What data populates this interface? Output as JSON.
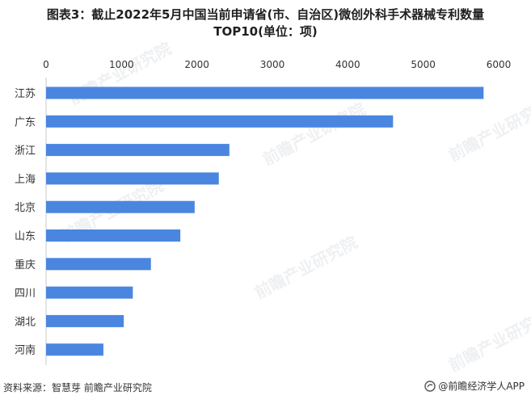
{
  "chart_data": {
    "type": "bar",
    "orientation": "horizontal",
    "title": "图表3：截止2022年5月中国当前申请省(市、自治区)微创外科手术器械专利数量TOP10(单位：项)",
    "title_line1": "图表3：截止2022年5月中国当前申请省(市、自治区)微创外科手术器械专利数量",
    "title_line2": "TOP10(单位：项)",
    "categories": [
      "江苏",
      "广东",
      "浙江",
      "上海",
      "北京",
      "山东",
      "重庆",
      "四川",
      "湖北",
      "河南"
    ],
    "values": [
      5800,
      4600,
      2430,
      2290,
      1970,
      1780,
      1390,
      1150,
      1030,
      760
    ],
    "xlim": [
      0,
      6000
    ],
    "xticks": [
      0,
      1000,
      2000,
      3000,
      4000,
      5000,
      6000
    ],
    "xaxis_position": "top",
    "grid": false,
    "bar_color": "#4a86e0",
    "xlabel": "",
    "ylabel": ""
  },
  "footer": {
    "source": "资料来源：智慧芽 前瞻产业研究院",
    "brand": "@前瞻经济学人APP"
  },
  "watermark_text": "前瞻产业研究院"
}
